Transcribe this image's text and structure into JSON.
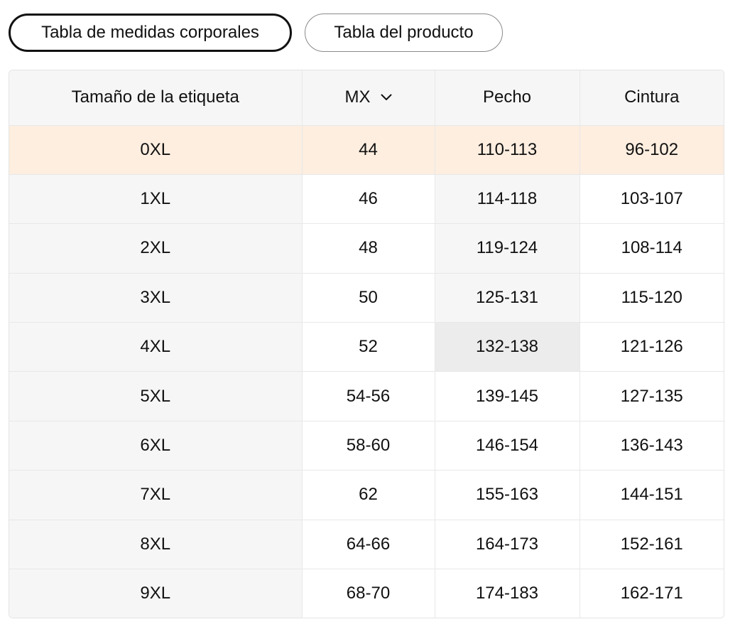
{
  "tabs": [
    {
      "label": "Tabla de medidas corporales",
      "active": true
    },
    {
      "label": "Tabla del producto",
      "active": false
    }
  ],
  "table": {
    "headers": {
      "size": "Tamaño de la etiqueta",
      "region": "MX",
      "chest": "Pecho",
      "waist": "Cintura"
    },
    "region_icon": "chevron-down-icon",
    "rows": [
      {
        "size": "0XL",
        "mx": "44",
        "chest": "110-113",
        "waist": "96-102"
      },
      {
        "size": "1XL",
        "mx": "46",
        "chest": "114-118",
        "waist": "103-107"
      },
      {
        "size": "2XL",
        "mx": "48",
        "chest": "119-124",
        "waist": "108-114"
      },
      {
        "size": "3XL",
        "mx": "50",
        "chest": "125-131",
        "waist": "115-120"
      },
      {
        "size": "4XL",
        "mx": "52",
        "chest": "132-138",
        "waist": "121-126"
      },
      {
        "size": "5XL",
        "mx": "54-56",
        "chest": "139-145",
        "waist": "127-135"
      },
      {
        "size": "6XL",
        "mx": "58-60",
        "chest": "146-154",
        "waist": "136-143"
      },
      {
        "size": "7XL",
        "mx": "62",
        "chest": "155-163",
        "waist": "144-151"
      },
      {
        "size": "8XL",
        "mx": "64-66",
        "chest": "164-173",
        "waist": "152-161"
      },
      {
        "size": "9XL",
        "mx": "68-70",
        "chest": "174-183",
        "waist": "162-171"
      }
    ]
  },
  "colors": {
    "highlight_row": "#fdeee0",
    "header_bg": "#f6f6f6",
    "hover_cell": "#ececec",
    "border": "#e8e8e8"
  }
}
